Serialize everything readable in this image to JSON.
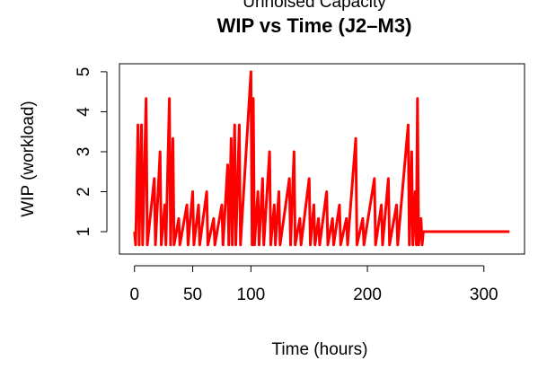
{
  "chart_data": {
    "type": "line",
    "subtitle": "Unnoised Capacity",
    "title": "WIP vs Time (J2–M3)",
    "x_label": "Time (hours)",
    "y_label": "WIP (workload)",
    "x": [
      0,
      1,
      3,
      4,
      6,
      7,
      10,
      11,
      17,
      18,
      22,
      23,
      26,
      27,
      30,
      31,
      33,
      34,
      38,
      39,
      45,
      46,
      50,
      51,
      55,
      56,
      62,
      63,
      68,
      69,
      75,
      76,
      80,
      81,
      83,
      84,
      86,
      87,
      90,
      91,
      100,
      101,
      102,
      103,
      106,
      107,
      110,
      111,
      116,
      117,
      120,
      121,
      124,
      125,
      133,
      134,
      137,
      138,
      142,
      143,
      150,
      151,
      154,
      155,
      158,
      159,
      165,
      166,
      170,
      171,
      176,
      177,
      182,
      183,
      190,
      191,
      196,
      197,
      206,
      207,
      212,
      213,
      218,
      219,
      225,
      226,
      235,
      236,
      238,
      239,
      241,
      242,
      243,
      244,
      246,
      247,
      248,
      322
    ],
    "series": [
      {
        "name": "WIP",
        "color": "#ff0000",
        "values": [
          1,
          0.67,
          3.67,
          0.67,
          3.67,
          0.67,
          4.33,
          0.67,
          2.33,
          0.67,
          3,
          0.67,
          1.67,
          0.67,
          4.33,
          0.67,
          3.33,
          0.67,
          1.33,
          0.67,
          1.67,
          0.67,
          2,
          0.67,
          1.67,
          0.67,
          2,
          0.67,
          1.33,
          0.67,
          1.67,
          0.67,
          2.67,
          0.67,
          3.33,
          0.67,
          3.67,
          0.67,
          3.67,
          0.67,
          5,
          0.67,
          4.33,
          0.67,
          2,
          0.67,
          2.33,
          0.67,
          3,
          0.67,
          1.67,
          0.67,
          2,
          0.67,
          2.33,
          0.67,
          3,
          0.67,
          1.33,
          0.67,
          2.33,
          0.67,
          1.67,
          0.67,
          1.33,
          0.67,
          2,
          0.67,
          1.33,
          0.67,
          1.67,
          0.67,
          1.33,
          0.67,
          3.33,
          0.67,
          1.33,
          0.67,
          2.33,
          0.67,
          1.67,
          0.67,
          2.33,
          0.67,
          1.67,
          0.67,
          3.67,
          0.67,
          3,
          0.67,
          2,
          0.67,
          4.33,
          0.67,
          1.33,
          0.67,
          1,
          1
        ]
      }
    ],
    "xlim": [
      -12.9,
      334.9
    ],
    "ylim": [
      0.44,
      5.2
    ],
    "xticks": [
      0,
      50,
      100,
      200,
      300
    ],
    "yticks": [
      1,
      2,
      3,
      4,
      5
    ]
  }
}
